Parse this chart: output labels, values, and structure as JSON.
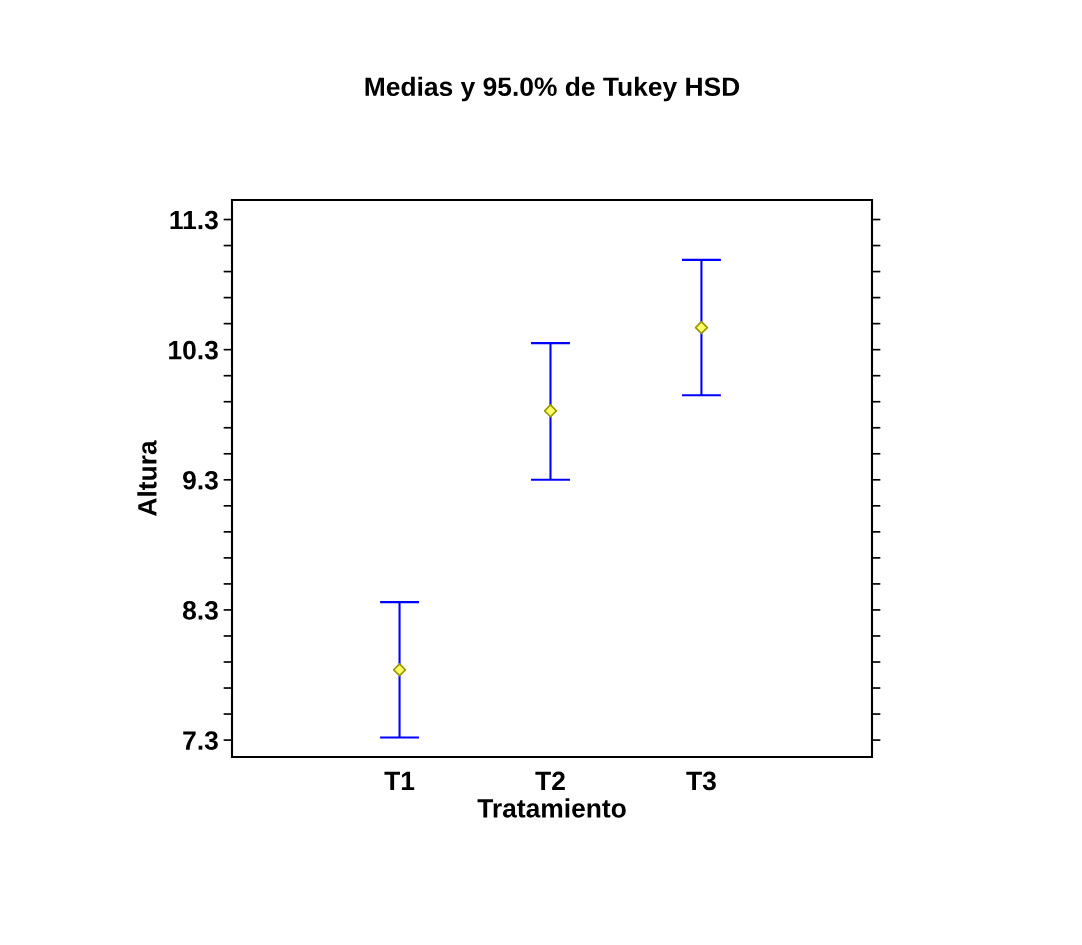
{
  "chart_data": {
    "type": "scatter",
    "title": "Medias y 95.0% de Tukey HSD",
    "xlabel": "Tratamiento",
    "ylabel": "Altura",
    "categories": [
      "T1",
      "T2",
      "T3"
    ],
    "series": [
      {
        "color": "#999900",
        "values": [
          7.84,
          9.83,
          10.47
        ],
        "errors": [
          [
            7.32,
            8.36
          ],
          [
            9.3,
            10.35
          ],
          [
            9.95,
            10.99
          ]
        ]
      }
    ],
    "marker": "diamond",
    "grid": false,
    "legend": false,
    "ylim": [
      7.17,
      11.45
    ],
    "yticks": [
      7.3,
      {
        "value": 7.5,
        "label": null
      },
      {
        "value": 7.7,
        "label": null
      },
      {
        "value": 7.9,
        "label": null
      },
      {
        "value": 8.1,
        "label": null
      },
      8.3,
      {
        "value": 8.5,
        "label": null
      },
      {
        "value": 8.7,
        "label": null
      },
      {
        "value": 8.9,
        "label": null
      },
      {
        "value": 9.1,
        "label": null
      },
      9.3,
      {
        "value": 9.5,
        "label": null
      },
      {
        "value": 9.7,
        "label": null
      },
      {
        "value": 9.9,
        "label": null
      },
      {
        "value": 10.1,
        "label": null
      },
      10.3,
      {
        "value": 10.5,
        "label": null
      },
      {
        "value": 10.7,
        "label": null
      },
      {
        "value": 10.9,
        "label": null
      },
      {
        "value": 11.1,
        "label": null
      },
      11.3
    ]
  }
}
